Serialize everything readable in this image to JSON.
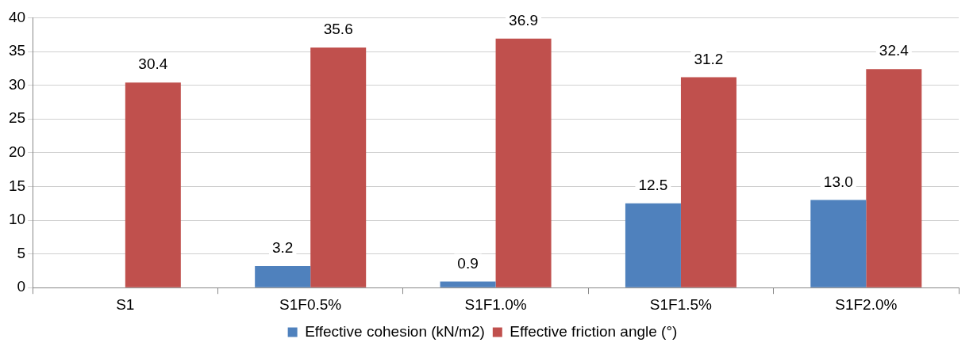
{
  "chart_data": {
    "type": "bar",
    "categories": [
      "S1",
      "S1F0.5%",
      "S1F1.0%",
      "S1F1.5%",
      "S1F2.0%"
    ],
    "series": [
      {
        "name": "Effective cohesion (kN/m2)",
        "color": "#4f81bd",
        "values": [
          null,
          3.2,
          0.9,
          12.5,
          13.0
        ],
        "value_labels": [
          null,
          "3.2",
          "0.9",
          "12.5",
          "13.0"
        ]
      },
      {
        "name": "Effective friction angle (°)",
        "color": "#c0504d",
        "values": [
          30.4,
          35.6,
          36.9,
          31.2,
          32.4
        ],
        "value_labels": [
          "30.4",
          "35.6",
          "36.9",
          "31.2",
          "32.4"
        ]
      }
    ],
    "ylim": [
      0,
      40
    ],
    "yticks": [
      0,
      5,
      10,
      15,
      20,
      25,
      30,
      35,
      40
    ],
    "grid": "y",
    "legend": "bottom"
  }
}
